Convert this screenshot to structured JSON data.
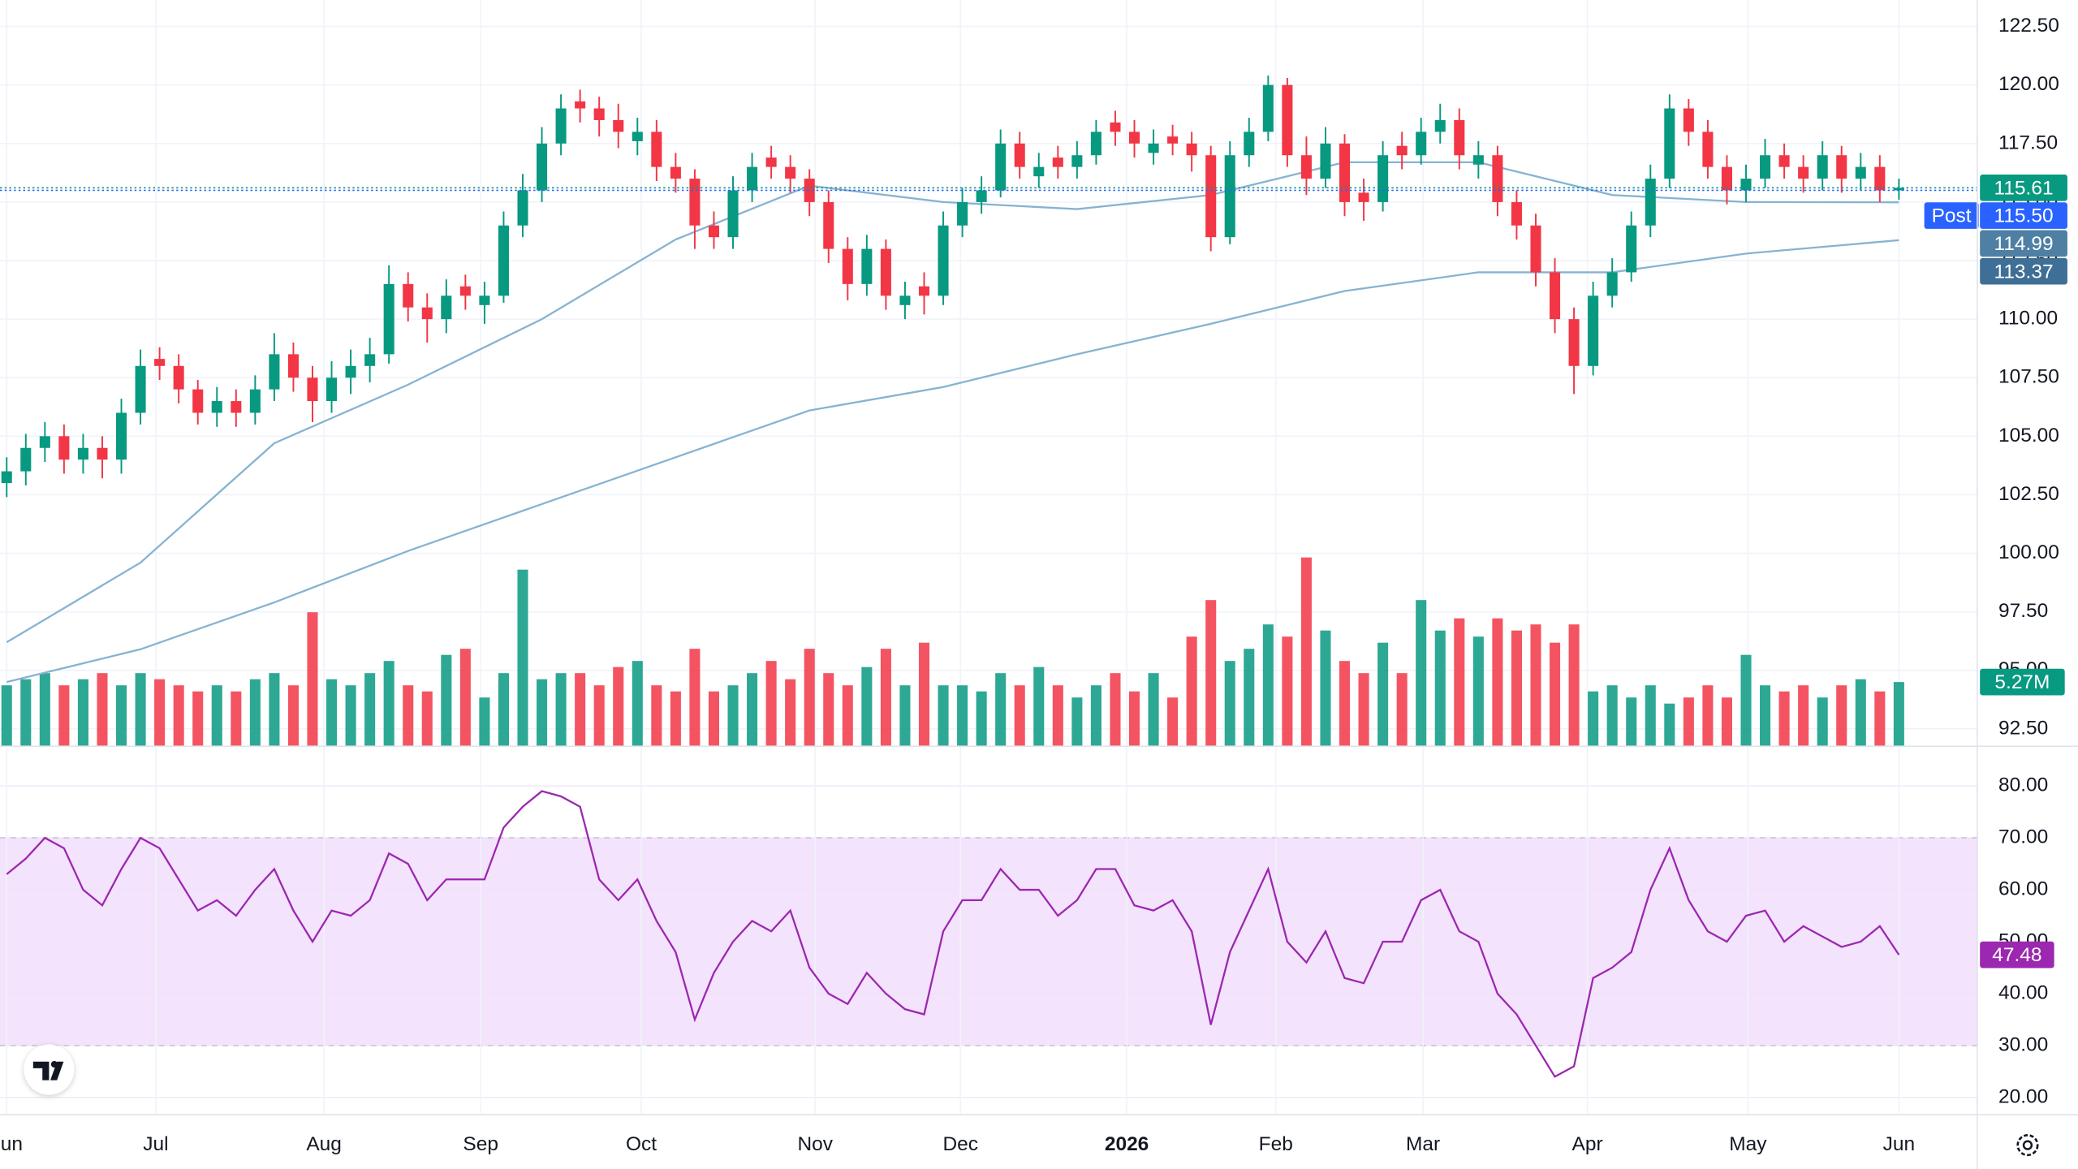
{
  "chart_data": {
    "type": "candlestick",
    "up_color": "#089981",
    "down_color": "#f23645",
    "open": [
      103,
      103.5,
      104.5,
      105,
      104,
      104.5,
      104,
      106,
      108.3,
      108,
      107,
      106,
      106.5,
      106,
      107,
      108.5,
      107.5,
      106.5,
      107.5,
      108,
      108.5,
      111.5,
      110.5,
      110,
      111.4,
      110.6,
      111,
      114,
      115.5,
      117.5,
      119.3,
      119,
      118.5,
      117.6,
      118,
      116.5,
      116,
      114,
      113.5,
      115.5,
      116.9,
      116.5,
      116,
      115,
      113,
      111.5,
      113,
      110.6,
      111.4,
      111,
      114,
      115,
      115.5,
      117.5,
      116.1,
      116.9,
      116.5,
      117,
      118.4,
      118,
      117.1,
      117.8,
      117.5,
      117,
      113.5,
      117,
      118,
      120,
      117,
      116,
      117.5,
      115.4,
      115,
      117.4,
      117,
      118,
      118.5,
      116.6,
      117,
      115,
      114,
      112,
      110,
      108,
      111,
      112,
      114,
      116,
      119,
      118,
      116.5,
      115.5,
      116,
      117,
      116.5,
      116,
      117,
      116,
      116.5,
      115.5
    ],
    "high": [
      104.1,
      105.1,
      105.6,
      105.5,
      105.1,
      105,
      106.6,
      108.7,
      108.8,
      108.5,
      107.4,
      107.1,
      107,
      107.6,
      109.4,
      109,
      108,
      108.2,
      108.7,
      109.2,
      112.3,
      112,
      111.1,
      111.7,
      111.9,
      111.6,
      114.6,
      116.2,
      118.2,
      119.6,
      119.8,
      119.5,
      119.2,
      118.6,
      118.5,
      117.1,
      116.4,
      114.6,
      116.1,
      117.1,
      117.4,
      117,
      116.4,
      115.5,
      113.5,
      113.6,
      113.4,
      111.6,
      112,
      114.6,
      115.6,
      116.1,
      118.1,
      118,
      117.1,
      117.4,
      117.6,
      118.5,
      118.9,
      118.5,
      118.1,
      118.3,
      118,
      117.4,
      117.6,
      118.6,
      120.4,
      120.3,
      117.8,
      118.2,
      117.9,
      116,
      117.6,
      118,
      118.6,
      119.2,
      119,
      117.6,
      117.4,
      115.5,
      114.5,
      112.6,
      110.5,
      111.6,
      112.6,
      114.6,
      116.6,
      119.6,
      119.4,
      118.5,
      117,
      116.6,
      117.7,
      117.5,
      117,
      117.6,
      117.4,
      117.1,
      117,
      116
    ],
    "low": [
      102.4,
      102.9,
      103.9,
      103.4,
      103.4,
      103.2,
      103.4,
      105.5,
      107.4,
      106.4,
      105.5,
      105.4,
      105.4,
      105.5,
      106.5,
      106.9,
      105.6,
      106,
      106.8,
      107.3,
      108.1,
      109.9,
      109,
      109.4,
      110.4,
      109.8,
      110.7,
      113.5,
      115,
      117,
      118.4,
      117.8,
      117.3,
      117,
      115.9,
      115.4,
      113,
      113,
      113,
      115,
      116,
      115.4,
      114.4,
      112.4,
      110.8,
      111,
      110.4,
      110,
      110.2,
      110.6,
      113.5,
      114.5,
      115.2,
      116,
      115.6,
      116,
      116,
      116.6,
      117.4,
      116.9,
      116.6,
      117,
      116.3,
      112.9,
      113.2,
      116.5,
      117.6,
      116.5,
      115.3,
      115.6,
      114.4,
      114.2,
      114.6,
      116.4,
      116.6,
      117.5,
      116.4,
      116,
      114.4,
      113.4,
      111.4,
      109.4,
      106.8,
      107.6,
      110.5,
      111.6,
      113.5,
      115.6,
      117.4,
      116,
      114.9,
      115,
      115.6,
      116,
      115.4,
      115.5,
      115.4,
      115.5,
      115,
      115.1
    ],
    "close": [
      103.5,
      104.5,
      105,
      104,
      104.5,
      104,
      106,
      108,
      108,
      107,
      106,
      106.5,
      106,
      107,
      108.5,
      107.5,
      106.5,
      107.5,
      108,
      108.5,
      111.5,
      110.5,
      110,
      111,
      111,
      111,
      114,
      115.5,
      117.5,
      119,
      119,
      118.5,
      118,
      118,
      116.5,
      116,
      114,
      113.5,
      115.5,
      116.5,
      116.5,
      116,
      115,
      113,
      111.5,
      113,
      111,
      111,
      111,
      114,
      115,
      115.5,
      117.5,
      116.5,
      116.5,
      116.5,
      117,
      118,
      118,
      117.5,
      117.5,
      117.5,
      117,
      113.5,
      117,
      118,
      120,
      117,
      116,
      117.5,
      115,
      115,
      117,
      117,
      118,
      118.5,
      117,
      117,
      115,
      114,
      112,
      110,
      108,
      111,
      112,
      114,
      116,
      119,
      118,
      116.5,
      115.5,
      116,
      117,
      116.5,
      116,
      117,
      116,
      116.5,
      115.5,
      115.61
    ],
    "volume": [
      5,
      5.5,
      6,
      5,
      5.5,
      6,
      5,
      6,
      5.5,
      5,
      4.5,
      5,
      4.5,
      5.5,
      6,
      5,
      11,
      5.5,
      5,
      6,
      7,
      5,
      4.5,
      7.5,
      8,
      4,
      6,
      14.5,
      5.5,
      6,
      6,
      5,
      6.5,
      7,
      5,
      4.5,
      8,
      4.5,
      5,
      6,
      7,
      5.5,
      8,
      6,
      5,
      6.5,
      8,
      5,
      8.5,
      5,
      5,
      4.5,
      6,
      5,
      6.5,
      5,
      4,
      5,
      6,
      4.5,
      6,
      4,
      9,
      12,
      7,
      8,
      10,
      9,
      15.5,
      9.5,
      7,
      6,
      8.5,
      6,
      12,
      9.5,
      10.5,
      9,
      10.5,
      9.5,
      10,
      8.5,
      10,
      4.5,
      5,
      4,
      5,
      3.5,
      4,
      5,
      4,
      7.5,
      5,
      4.5,
      5,
      4,
      5,
      5.5,
      4.5,
      5.27
    ],
    "volume_ylim": [
      0,
      16
    ],
    "volume_label": {
      "value": 5.27,
      "label": "5.27M"
    },
    "xlim": [
      -0.35,
      103.1
    ],
    "xticks": [
      {
        "value": 0,
        "label": "Jun"
      },
      {
        "value": 7.8,
        "label": "Jul"
      },
      {
        "value": 16.6,
        "label": "Aug"
      },
      {
        "value": 24.8,
        "label": "Sep"
      },
      {
        "value": 33.2,
        "label": "Oct"
      },
      {
        "value": 42.3,
        "label": "Nov"
      },
      {
        "value": 49.9,
        "label": "Dec"
      },
      {
        "value": 58.6,
        "label": "2026"
      },
      {
        "value": 66.4,
        "label": "Feb"
      },
      {
        "value": 74.1,
        "label": "Mar"
      },
      {
        "value": 82.7,
        "label": "Apr"
      },
      {
        "value": 91.1,
        "label": "May"
      },
      {
        "value": 99,
        "label": "Jun"
      }
    ],
    "ylim": [
      91.76,
      123.63
    ],
    "yticks": [
      {
        "value": 122.5,
        "label": "122.50"
      },
      {
        "value": 120,
        "label": "120.00"
      },
      {
        "value": 117.5,
        "label": "117.50"
      },
      {
        "value": 115,
        "label": "115.00"
      },
      {
        "value": 112.5,
        "label": "112.50"
      },
      {
        "value": 110,
        "label": "110.00"
      },
      {
        "value": 107.5,
        "label": "107.50"
      },
      {
        "value": 105,
        "label": "105.00"
      },
      {
        "value": 102.5,
        "label": "102.50"
      },
      {
        "value": 100,
        "label": "100.00"
      },
      {
        "value": 97.5,
        "label": "97.50"
      },
      {
        "value": 95,
        "label": "95.00"
      },
      {
        "value": 92.5,
        "label": "92.50"
      }
    ],
    "grid": true,
    "ma": [
      {
        "color": "#86b3d1",
        "x": [
          0,
          7,
          14,
          21,
          28,
          35,
          42,
          49,
          56,
          63,
          70,
          77,
          84,
          91,
          99
        ],
        "values": [
          96.2,
          99.6,
          104.7,
          107.2,
          110,
          113.4,
          115.7,
          115.0,
          114.7,
          115.3,
          116.7,
          116.7,
          115.3,
          115.0,
          114.99
        ]
      },
      {
        "color": "#86b3d1",
        "x": [
          0,
          7,
          14,
          21,
          28,
          35,
          42,
          49,
          56,
          63,
          70,
          77,
          84,
          91,
          99
        ],
        "values": [
          94.5,
          95.9,
          97.9,
          100.1,
          102.1,
          104.1,
          106.1,
          107.1,
          108.5,
          109.8,
          111.2,
          112.0,
          112.0,
          112.8,
          113.37
        ]
      }
    ],
    "price_labels": [
      {
        "label": "115.61",
        "value": 115.61,
        "color": "#089981",
        "dotted": true
      },
      {
        "text": "Post",
        "label": "115.50",
        "value": 115.5,
        "color": "#2962ff",
        "dotted": true
      },
      {
        "label": "114.99",
        "value": 114.99,
        "color": "#4f7fa3"
      },
      {
        "label": "113.37",
        "value": 113.37,
        "color": "#3f6f96"
      }
    ],
    "rsi": {
      "color": "#9c27b0",
      "band": [
        30,
        70
      ],
      "band_color": "#f3e3fc",
      "ylim": [
        16.94,
        87.66
      ],
      "yticks": [
        {
          "value": 80,
          "label": "80.00"
        },
        {
          "value": 70,
          "label": "70.00"
        },
        {
          "value": 60,
          "label": "60.00"
        },
        {
          "value": 50,
          "label": "50.00"
        },
        {
          "value": 40,
          "label": "40.00"
        },
        {
          "value": 30,
          "label": "30.00"
        },
        {
          "value": 20,
          "label": "20.00"
        }
      ],
      "values": [
        63,
        66,
        70,
        68,
        60,
        57,
        64,
        70,
        68,
        62,
        56,
        58,
        55,
        60,
        64,
        56,
        50,
        56,
        55,
        58,
        67,
        65,
        58,
        62,
        62,
        62,
        72,
        76,
        79,
        78,
        76,
        62,
        58,
        62,
        54,
        48,
        35,
        44,
        50,
        54,
        52,
        56,
        45,
        40,
        38,
        44,
        40,
        37,
        36,
        52,
        58,
        58,
        64,
        60,
        60,
        55,
        58,
        64,
        64,
        57,
        56,
        58,
        52,
        34,
        48,
        56,
        64,
        50,
        46,
        52,
        43,
        42,
        50,
        50,
        58,
        60,
        52,
        50,
        40,
        36,
        30,
        24,
        26,
        43,
        45,
        48,
        60,
        68,
        58,
        52,
        50,
        55,
        56,
        50,
        53,
        51,
        49,
        50,
        53,
        47.48
      ],
      "label": {
        "value": 47.48,
        "label": "47.48"
      }
    }
  }
}
